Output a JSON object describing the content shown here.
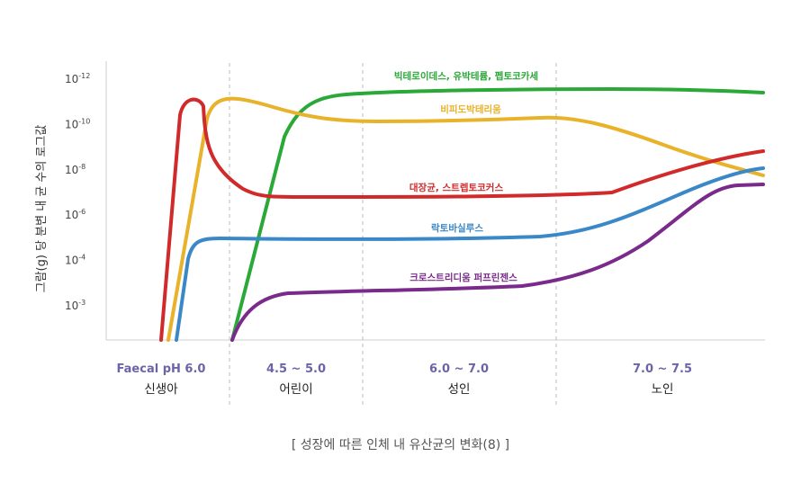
{
  "chart_data": {
    "type": "line",
    "ylabel": "그람(g) 당 분변 내 균 수의 로그값",
    "y_ticks": [
      {
        "base": "10",
        "exp": "-12"
      },
      {
        "base": "10",
        "exp": "-10"
      },
      {
        "base": "10",
        "exp": "-8"
      },
      {
        "base": "10",
        "exp": "-6"
      },
      {
        "base": "10",
        "exp": "-4"
      },
      {
        "base": "10",
        "exp": "-3"
      }
    ],
    "stages": [
      {
        "ph": "Faecal pH 6.0",
        "name": "신생아",
        "ph_color": "#6b64a8"
      },
      {
        "ph": "4.5 ~ 5.0",
        "name": "어린이",
        "ph_color": "#6b64a8"
      },
      {
        "ph": "6.0 ~ 7.0",
        "name": "성인",
        "ph_color": "#6b64a8"
      },
      {
        "ph": "7.0 ~ 7.5",
        "name": "노인",
        "ph_color": "#6b64a8"
      }
    ],
    "series": [
      {
        "name": "빅테로이데스, 유박테륨, 펩토코카세",
        "color": "#2aa838"
      },
      {
        "name": "비피도박테리움",
        "color": "#e8b22a"
      },
      {
        "name": "대장균, 스트렙토코커스",
        "color": "#d12a2a"
      },
      {
        "name": "락토바실루스",
        "color": "#3a88c8"
      },
      {
        "name": "크로스트리디움 퍼프린젠스",
        "color": "#7a2a8a"
      }
    ],
    "caption": "[ 성장에 따른 인체 내 유산균의 변화(8) ]"
  }
}
